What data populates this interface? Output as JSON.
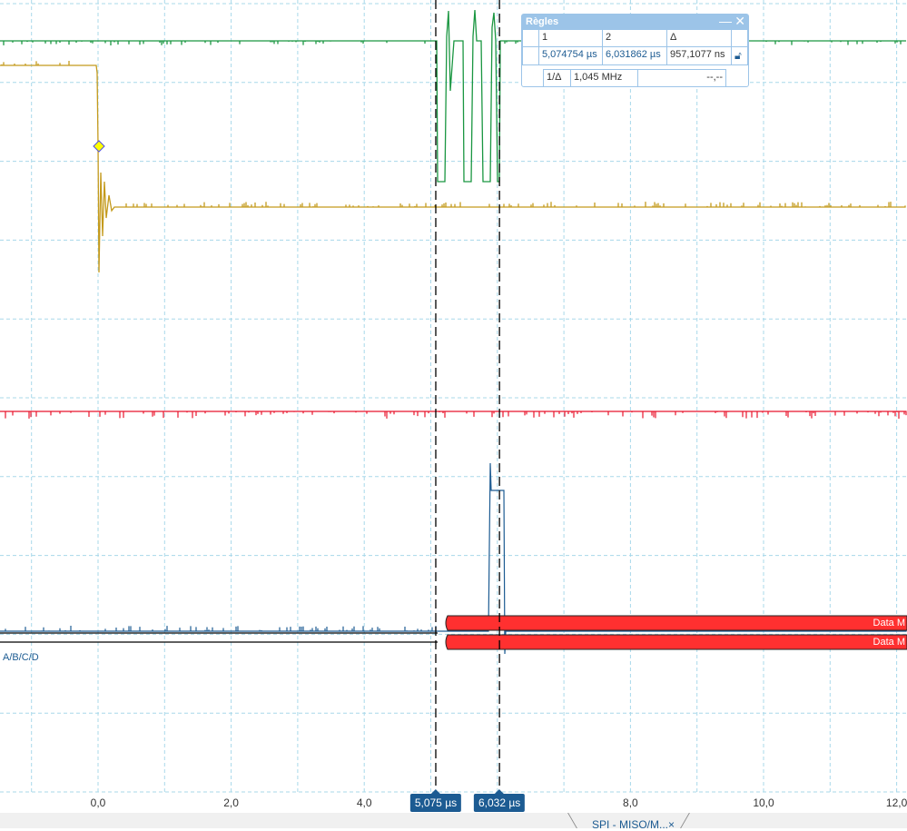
{
  "axis": {
    "unit": "µs",
    "ticks": [
      {
        "value": 0,
        "label": "0,0"
      },
      {
        "value": 2,
        "label": "2,0"
      },
      {
        "value": 4,
        "label": "4,0"
      },
      {
        "value": 8,
        "label": "8,0"
      },
      {
        "value": 10,
        "label": "10,0"
      },
      {
        "value": 12,
        "label": "12,0"
      }
    ]
  },
  "cursors": [
    {
      "time_us": 5.074754,
      "label": "5,075 µs"
    },
    {
      "time_us": 6.031862,
      "label": "6,032 µs"
    }
  ],
  "rulers": {
    "title": "Règles",
    "headers": [
      "1",
      "2",
      "Δ"
    ],
    "values": [
      "5,074754 µs",
      "6,031862 µs",
      "957,1077 ns"
    ],
    "inv_label": "1/Δ",
    "inv_value": "1,045 MHz",
    "extra": "--,--",
    "lock_icon": "unlock-icon"
  },
  "bus": {
    "name": "A/B/C/D",
    "packets": [
      "Data M",
      "Data M"
    ]
  },
  "tab": {
    "label": "SPI - MISO/M...",
    "close": "×"
  },
  "colors": {
    "channel_a": "#1a9641",
    "channel_b": "#c49a1c",
    "channel_c": "#e8142c",
    "channel_d": "#1c5b92",
    "packet": "#ff3030",
    "grid": "#a8d8ea"
  }
}
